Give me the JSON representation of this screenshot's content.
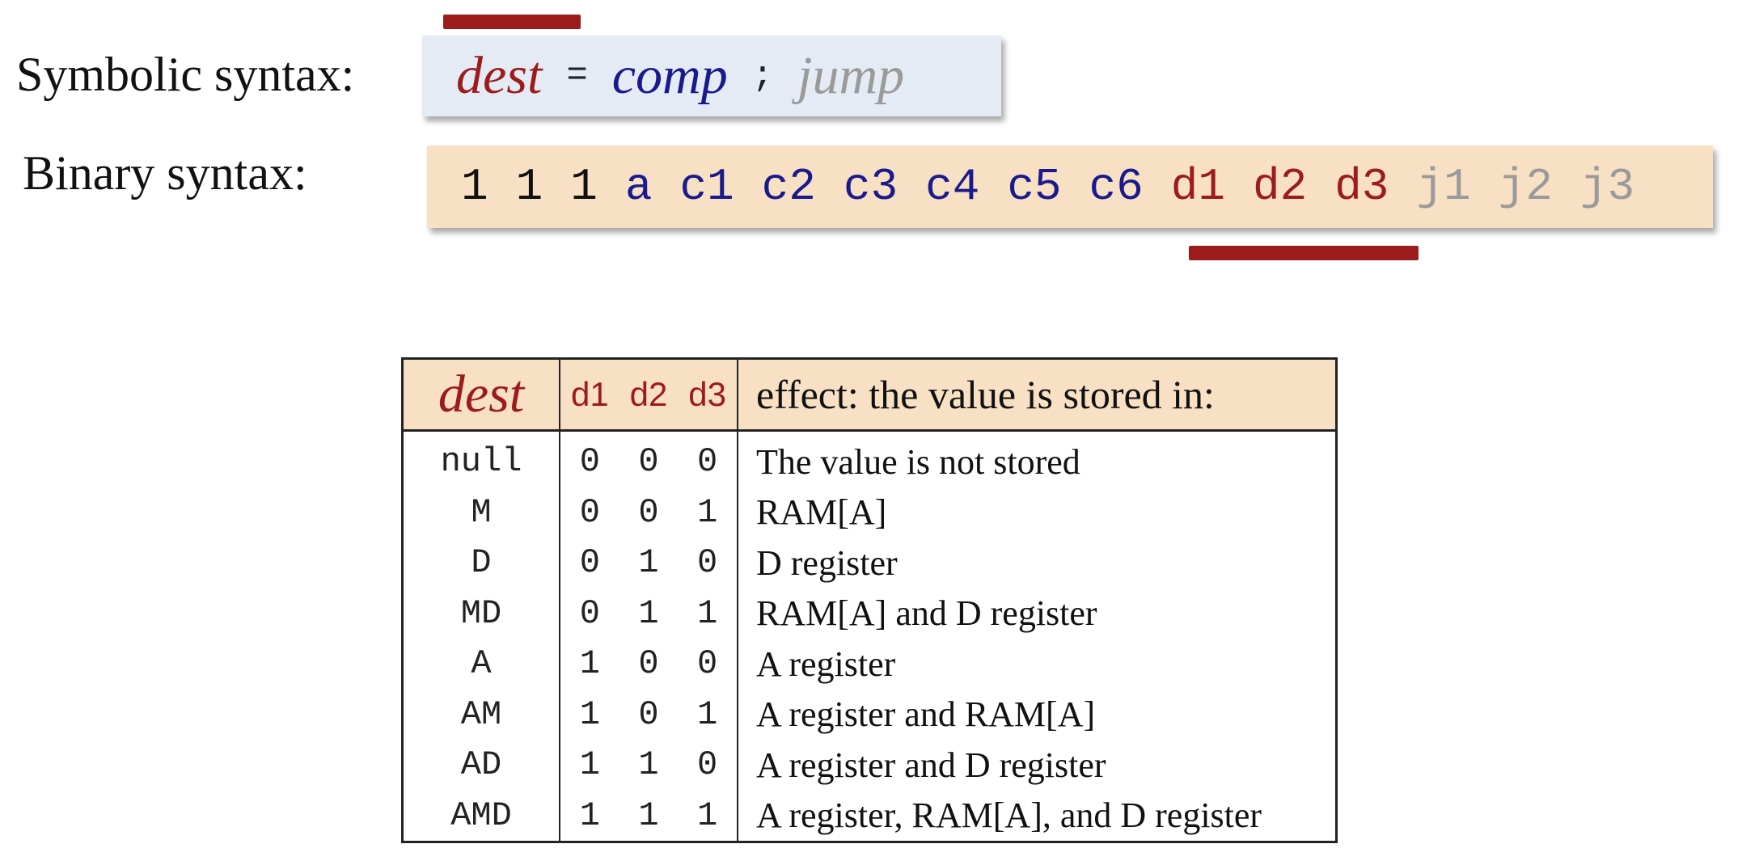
{
  "symbolic": {
    "label": "Symbolic syntax:",
    "dest": "dest",
    "equals": "=",
    "comp": "comp",
    "semicolon": ";",
    "jump": "jump"
  },
  "binary": {
    "label": "Binary syntax:",
    "bits": [
      "1",
      "1",
      "1",
      "a",
      "c1",
      "c2",
      "c3",
      "c4",
      "c5",
      "c6",
      "d1",
      "d2",
      "d3",
      "j1",
      "j2",
      "j3"
    ]
  },
  "table": {
    "headers": {
      "dest": "dest",
      "bits": [
        "d1",
        "d2",
        "d3"
      ],
      "effect": "effect: the value is stored in:"
    },
    "rows": [
      {
        "dest": "null",
        "bits": [
          "0",
          "0",
          "0"
        ],
        "effect": "The value is not stored"
      },
      {
        "dest": "M",
        "bits": [
          "0",
          "0",
          "1"
        ],
        "effect": "RAM[A]"
      },
      {
        "dest": "D",
        "bits": [
          "0",
          "1",
          "0"
        ],
        "effect": "D register"
      },
      {
        "dest": "MD",
        "bits": [
          "0",
          "1",
          "1"
        ],
        "effect": "RAM[A] and D register"
      },
      {
        "dest": "A",
        "bits": [
          "1",
          "0",
          "0"
        ],
        "effect": "A register"
      },
      {
        "dest": "AM",
        "bits": [
          "1",
          "0",
          "1"
        ],
        "effect": "A register and RAM[A]"
      },
      {
        "dest": "AD",
        "bits": [
          "1",
          "1",
          "0"
        ],
        "effect": "A register and D register"
      },
      {
        "dest": "AMD",
        "bits": [
          "1",
          "1",
          "1"
        ],
        "effect": "A register, RAM[A], and D register"
      }
    ]
  },
  "colors": {
    "accent_red": "#9c1b1b",
    "comp_blue": "#1a1a8c",
    "jump_grey": "#9a9a9a",
    "symbolic_bg": "#e4ebf5",
    "binary_bg": "#f7e0c4"
  }
}
